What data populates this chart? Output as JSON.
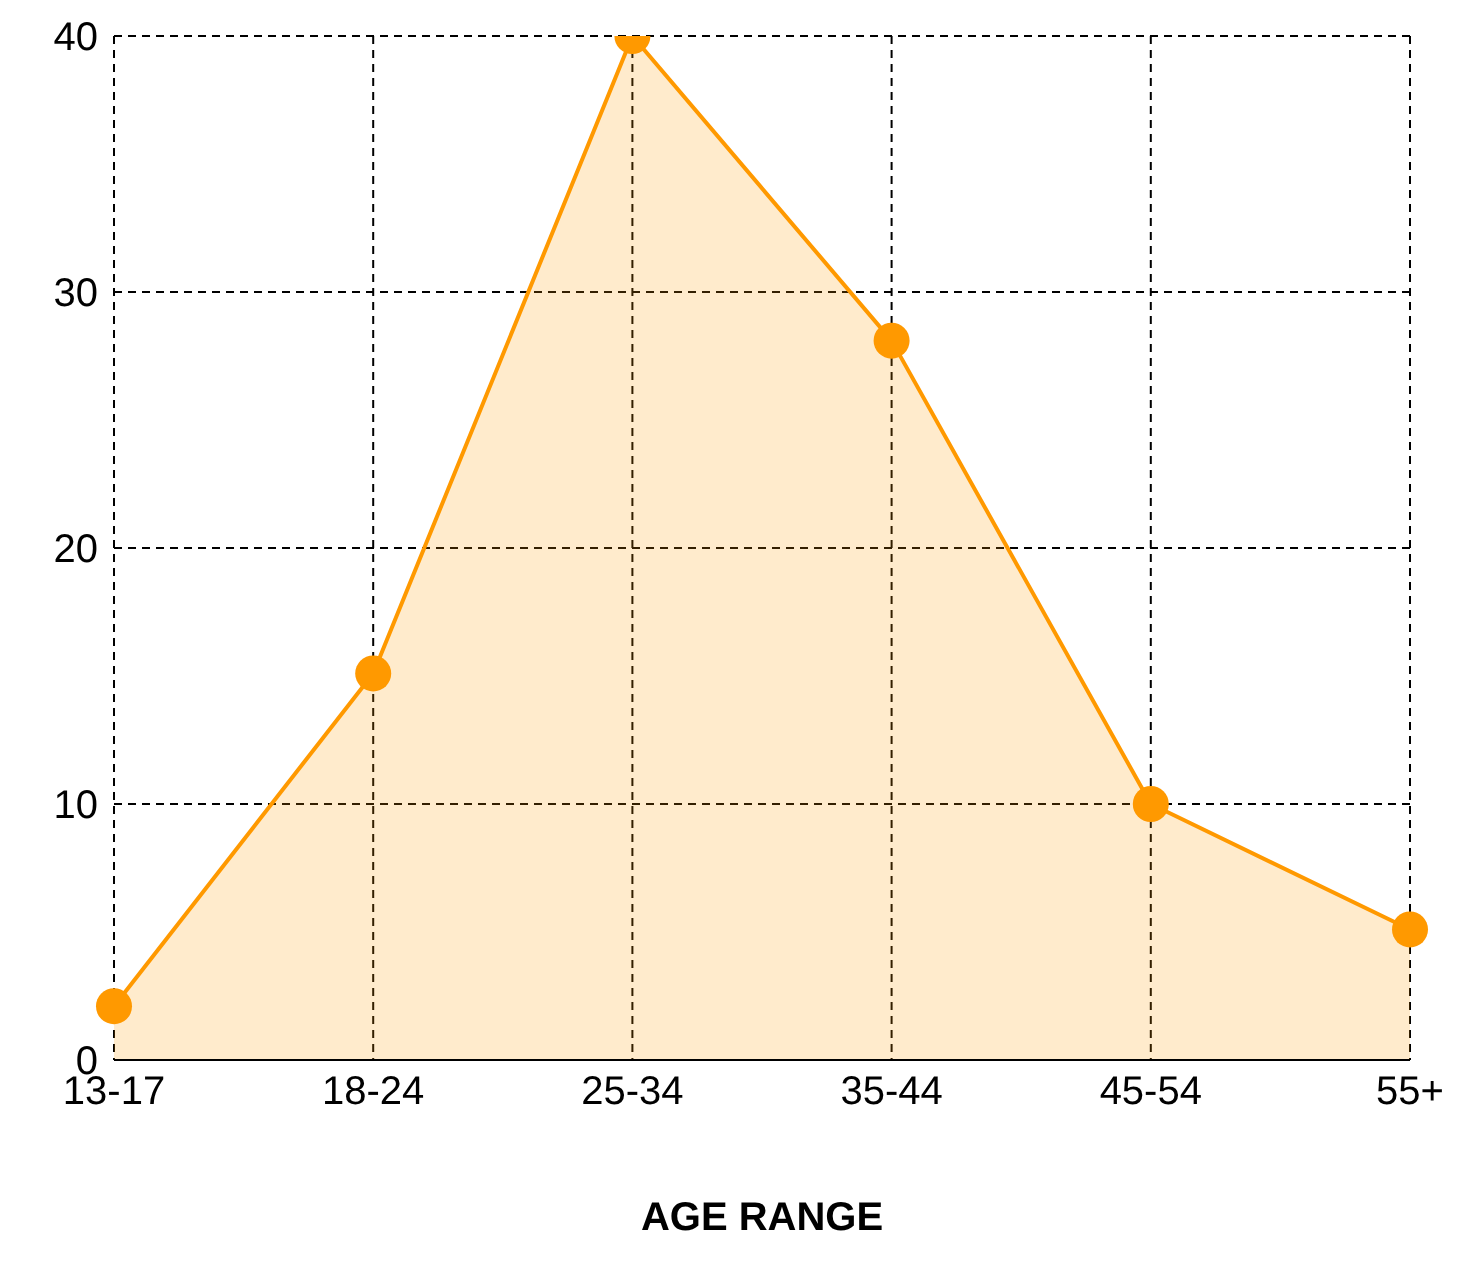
{
  "chart_data": {
    "type": "area",
    "xlabel": "AGE RANGE",
    "categories": [
      "13-17",
      "18-24",
      "25-34",
      "35-44",
      "45-54",
      "55+"
    ],
    "series": [
      {
        "color": "#ff9900",
        "values": [
          2.1,
          15.1,
          40,
          28.1,
          10,
          5.1
        ]
      }
    ],
    "ylim": [
      0,
      40
    ],
    "yticks": [
      0,
      10,
      20,
      30,
      40
    ],
    "grid": true,
    "marker": "circle"
  }
}
